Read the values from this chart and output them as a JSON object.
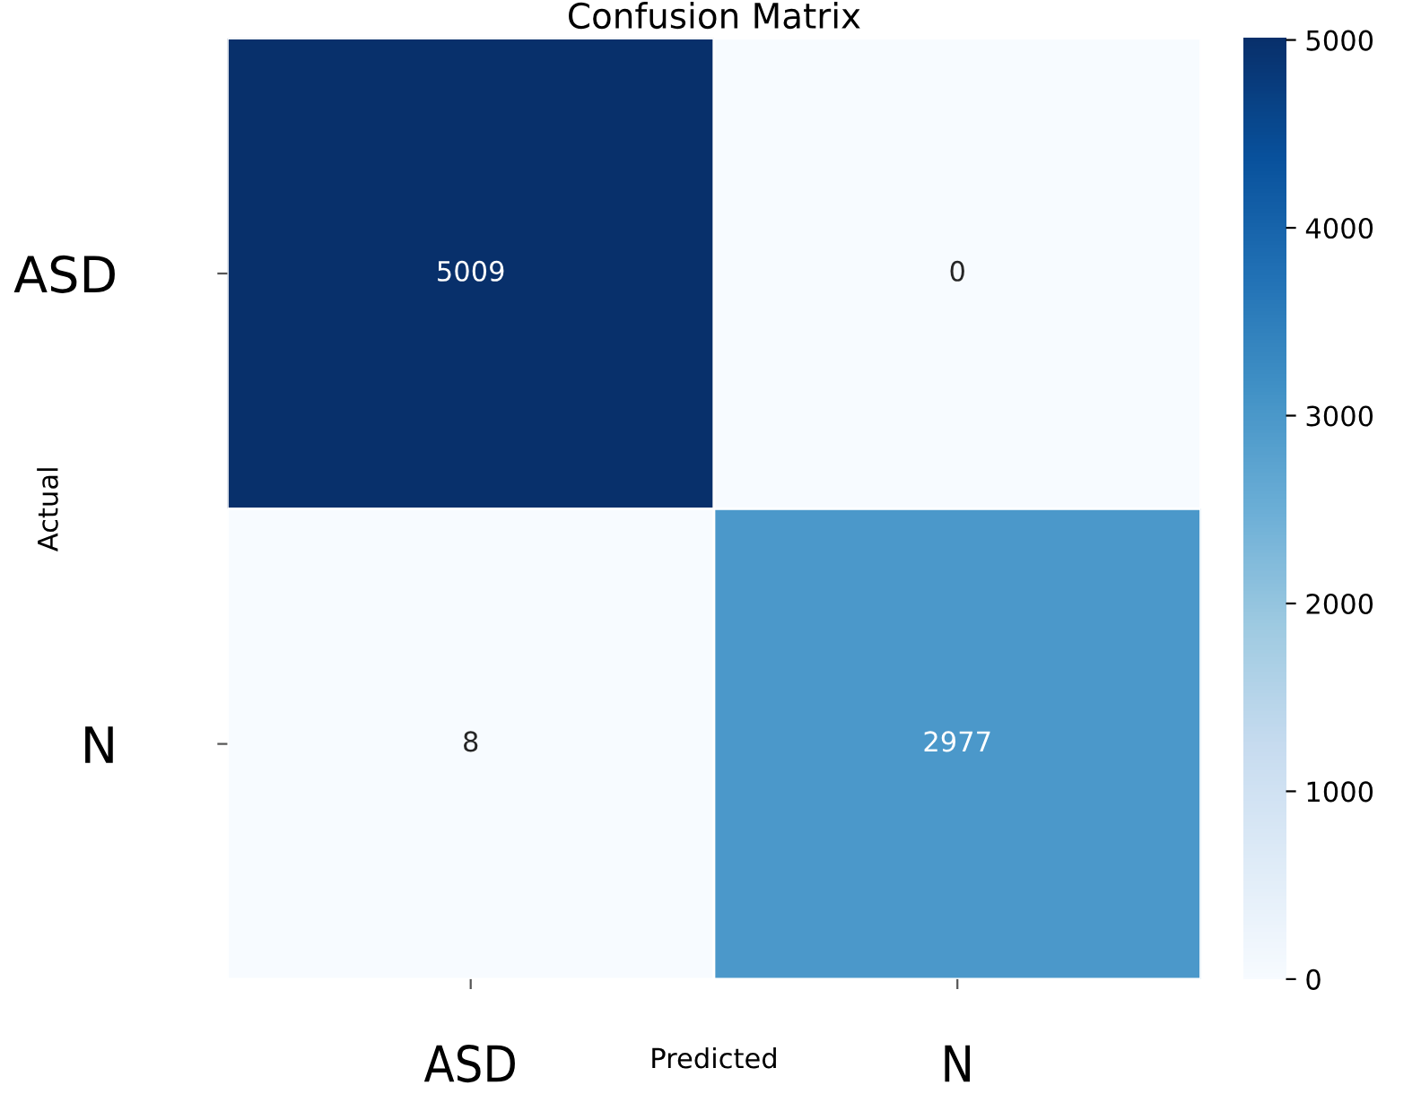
{
  "chart_data": {
    "type": "heatmap",
    "title": "Confusion Matrix",
    "xlabel": "Predicted",
    "ylabel": "Actual",
    "categories": [
      "ASD",
      "N"
    ],
    "y_categories": [
      "ASD",
      "N"
    ],
    "cells": [
      [
        5009,
        0
      ],
      [
        8,
        2977
      ]
    ],
    "data_labels": true,
    "clim": [
      0,
      5009
    ],
    "cticks": [
      0,
      1000,
      2000,
      3000,
      4000,
      5000
    ]
  }
}
